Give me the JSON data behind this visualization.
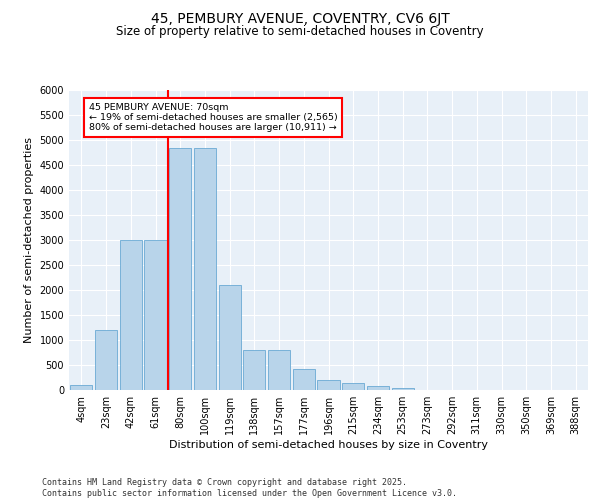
{
  "title_line1": "45, PEMBURY AVENUE, COVENTRY, CV6 6JT",
  "title_line2": "Size of property relative to semi-detached houses in Coventry",
  "xlabel": "Distribution of semi-detached houses by size in Coventry",
  "ylabel": "Number of semi-detached properties",
  "categories": [
    "4sqm",
    "23sqm",
    "42sqm",
    "61sqm",
    "80sqm",
    "100sqm",
    "119sqm",
    "138sqm",
    "157sqm",
    "177sqm",
    "196sqm",
    "215sqm",
    "234sqm",
    "253sqm",
    "273sqm",
    "292sqm",
    "311sqm",
    "330sqm",
    "350sqm",
    "369sqm",
    "388sqm"
  ],
  "values": [
    100,
    1200,
    3000,
    3000,
    4850,
    4850,
    2100,
    800,
    800,
    420,
    200,
    150,
    75,
    50,
    0,
    0,
    0,
    0,
    0,
    0,
    0
  ],
  "bar_color": "#b8d4ea",
  "bar_edge_color": "#6aaad4",
  "red_line_x": 3.5,
  "annotation_box_text": "45 PEMBURY AVENUE: 70sqm\n← 19% of semi-detached houses are smaller (2,565)\n80% of semi-detached houses are larger (10,911) →",
  "ylim": [
    0,
    6000
  ],
  "yticks": [
    0,
    500,
    1000,
    1500,
    2000,
    2500,
    3000,
    3500,
    4000,
    4500,
    5000,
    5500,
    6000
  ],
  "background_color": "#e8f0f8",
  "footer_line1": "Contains HM Land Registry data © Crown copyright and database right 2025.",
  "footer_line2": "Contains public sector information licensed under the Open Government Licence v3.0.",
  "title_fontsize": 10,
  "subtitle_fontsize": 8.5,
  "axis_label_fontsize": 8,
  "tick_fontsize": 7,
  "footer_fontsize": 6
}
